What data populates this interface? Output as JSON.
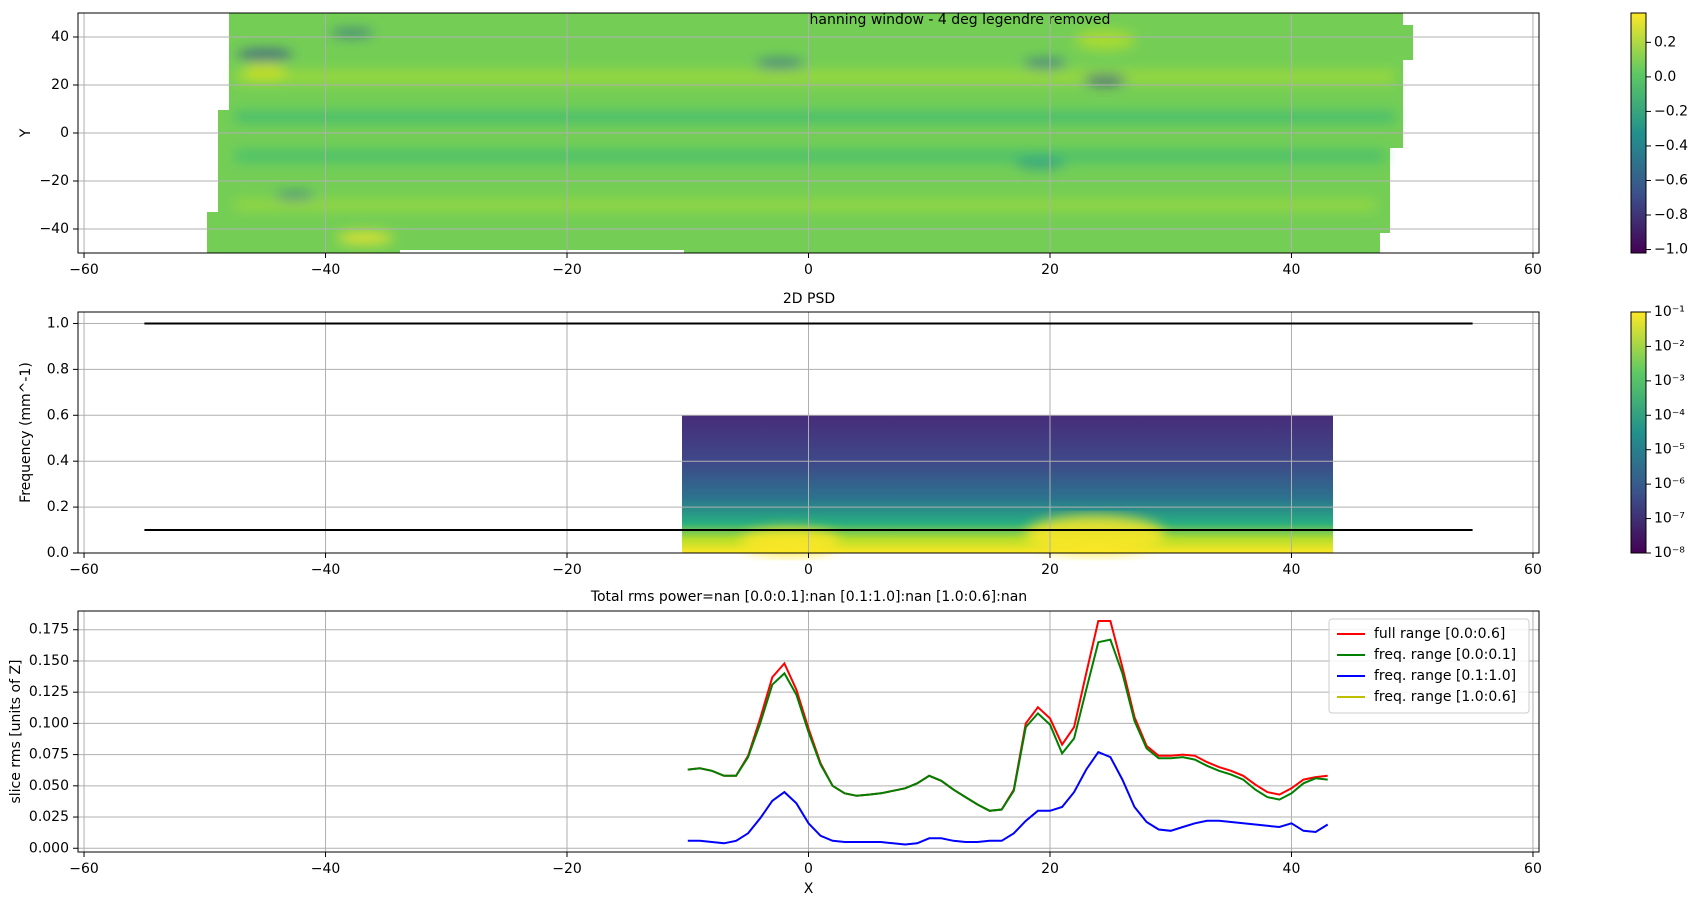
{
  "chart_data": [
    {
      "type": "heatmap",
      "title": "hanning window - 4 deg legendre removed",
      "y_label": "Y",
      "xlim": [
        -60.5,
        60.5
      ],
      "ylim": [
        -50,
        50
      ],
      "xticks": [
        {
          "value": -60,
          "label": "−60"
        },
        {
          "value": -40,
          "label": "−40"
        },
        {
          "value": -20,
          "label": "−20"
        },
        0,
        20,
        40,
        60
      ],
      "yticks": [
        {
          "value": -40,
          "label": "−40"
        },
        {
          "value": -20,
          "label": "−20"
        },
        0,
        20,
        40
      ],
      "grid": true,
      "colormap": "viridis",
      "colorbar": {
        "lim": [
          -1.02,
          0.37
        ],
        "log": false,
        "ticks": [
          {
            "value": -1.0,
            "label": "−1.0"
          },
          {
            "value": -0.8,
            "label": "−0.8"
          },
          {
            "value": -0.6,
            "label": "−0.6"
          },
          {
            "value": -0.4,
            "label": "−0.4"
          },
          {
            "value": -0.2,
            "label": "−0.2"
          },
          {
            "value": 0,
            "label": "0.0"
          },
          0.2
        ]
      }
    },
    {
      "type": "heatmap",
      "title": "2D PSD",
      "y_label": "Frequency (mm^-1)",
      "xlim": [
        -60.5,
        60.5
      ],
      "ylim": [
        0,
        1.05
      ],
      "xticks": [
        {
          "value": -60,
          "label": "−60"
        },
        {
          "value": -40,
          "label": "−40"
        },
        {
          "value": -20,
          "label": "−20"
        },
        0,
        20,
        40,
        60
      ],
      "yticks": [
        {
          "value": 0,
          "label": "0.0"
        },
        0.2,
        0.4,
        0.6,
        0.8,
        {
          "value": 1,
          "label": "1.0"
        }
      ],
      "grid": true,
      "colormap": "viridis",
      "series": [
        {
          "color": "#000000",
          "x": [
            -55,
            55
          ],
          "values": [
            1,
            1
          ]
        },
        {
          "color": "#000000",
          "x": [
            -55,
            55
          ],
          "values": [
            0.1,
            0.1
          ]
        }
      ],
      "colorbar": {
        "lim": [
          1e-08,
          0.1
        ],
        "log": true,
        "ticks": [
          {
            "value": 1e-08,
            "label": "10⁻⁸"
          },
          {
            "value": 1e-07,
            "label": "10⁻⁷"
          },
          {
            "value": 1e-06,
            "label": "10⁻⁶"
          },
          {
            "value": 1e-05,
            "label": "10⁻⁵"
          },
          {
            "value": 0.0001,
            "label": "10⁻⁴"
          },
          {
            "value": 0.001,
            "label": "10⁻³"
          },
          {
            "value": 0.01,
            "label": "10⁻²"
          },
          {
            "value": 0.1,
            "label": "10⁻¹"
          }
        ]
      }
    },
    {
      "type": "line",
      "title": "Total rms power=nan [0.0:0.1]:nan  [0.1:1.0]:nan  [1.0:0.6]:nan",
      "x_label": "X",
      "y_label": "slice rms [units of Z]",
      "xlim": [
        -60.5,
        60.5
      ],
      "ylim": [
        -0.003,
        0.19
      ],
      "xticks": [
        {
          "value": -60,
          "label": "−60"
        },
        {
          "value": -40,
          "label": "−40"
        },
        {
          "value": -20,
          "label": "−20"
        },
        0,
        20,
        40,
        60
      ],
      "yticks": [
        {
          "value": 0,
          "label": "0.000"
        },
        0.025,
        {
          "value": 0.05,
          "label": "0.050"
        },
        0.075,
        {
          "value": 0.1,
          "label": "0.100"
        },
        0.125,
        {
          "value": 0.15,
          "label": "0.150"
        },
        0.175
      ],
      "grid": true,
      "legend": "upper right",
      "x": [
        -10,
        -9,
        -8,
        -7,
        -6,
        -5,
        -4,
        -3,
        -2,
        -1,
        0,
        1,
        2,
        3,
        4,
        5,
        6,
        7,
        8,
        9,
        10,
        11,
        12,
        13,
        14,
        15,
        16,
        17,
        18,
        19,
        20,
        21,
        22,
        23,
        24,
        25,
        26,
        27,
        28,
        29,
        30,
        31,
        32,
        33,
        34,
        35,
        36,
        37,
        38,
        39,
        40,
        41,
        42,
        43
      ],
      "series": [
        {
          "name": "full range [0.0:0.6]",
          "color": "#ff0000",
          "values": [
            0.063,
            0.064,
            0.062,
            0.058,
            0.058,
            0.074,
            0.104,
            0.137,
            0.148,
            0.127,
            0.096,
            0.068,
            0.05,
            0.044,
            0.042,
            0.043,
            0.044,
            0.046,
            0.048,
            0.052,
            0.058,
            0.054,
            0.047,
            0.041,
            0.035,
            0.03,
            0.031,
            0.047,
            0.1,
            0.113,
            0.104,
            0.083,
            0.097,
            0.14,
            0.182,
            0.182,
            0.145,
            0.105,
            0.082,
            0.074,
            0.074,
            0.075,
            0.074,
            0.069,
            0.065,
            0.062,
            0.058,
            0.051,
            0.045,
            0.043,
            0.048,
            0.055,
            0.057,
            0.058
          ]
        },
        {
          "name": "freq. range [0.0:0.1]",
          "color": "#008000",
          "values": [
            0.063,
            0.064,
            0.062,
            0.058,
            0.058,
            0.073,
            0.1,
            0.131,
            0.14,
            0.123,
            0.093,
            0.067,
            0.05,
            0.044,
            0.042,
            0.043,
            0.044,
            0.046,
            0.048,
            0.052,
            0.058,
            0.054,
            0.047,
            0.041,
            0.035,
            0.03,
            0.031,
            0.046,
            0.097,
            0.108,
            0.099,
            0.076,
            0.088,
            0.127,
            0.165,
            0.167,
            0.14,
            0.102,
            0.08,
            0.072,
            0.072,
            0.073,
            0.071,
            0.066,
            0.062,
            0.059,
            0.055,
            0.047,
            0.041,
            0.039,
            0.044,
            0.052,
            0.056,
            0.055
          ]
        },
        {
          "name": "freq. range [0.1:1.0]",
          "color": "#0000ff",
          "values": [
            0.006,
            0.006,
            0.005,
            0.004,
            0.006,
            0.012,
            0.024,
            0.038,
            0.045,
            0.036,
            0.02,
            0.01,
            0.006,
            0.005,
            0.005,
            0.005,
            0.005,
            0.004,
            0.003,
            0.004,
            0.008,
            0.008,
            0.006,
            0.005,
            0.005,
            0.006,
            0.006,
            0.012,
            0.022,
            0.03,
            0.03,
            0.033,
            0.045,
            0.063,
            0.077,
            0.073,
            0.055,
            0.033,
            0.021,
            0.015,
            0.014,
            0.017,
            0.02,
            0.022,
            0.022,
            0.021,
            0.02,
            0.019,
            0.018,
            0.017,
            0.02,
            0.014,
            0.013,
            0.019
          ]
        },
        {
          "name": "freq. range [1.0:0.6]",
          "color": "#bfbf00",
          "values": [
            null,
            null,
            null,
            null,
            null,
            null,
            null,
            null,
            null,
            null,
            null,
            null,
            null,
            null,
            null,
            null,
            null,
            null,
            null,
            null,
            null,
            null,
            null,
            null,
            null,
            null,
            null,
            null,
            null,
            null,
            null,
            null,
            null,
            null,
            null,
            null,
            null,
            null,
            null,
            null,
            null,
            null,
            null,
            null,
            null,
            null,
            null,
            null,
            null,
            null,
            null,
            null,
            null,
            null
          ]
        }
      ]
    }
  ]
}
